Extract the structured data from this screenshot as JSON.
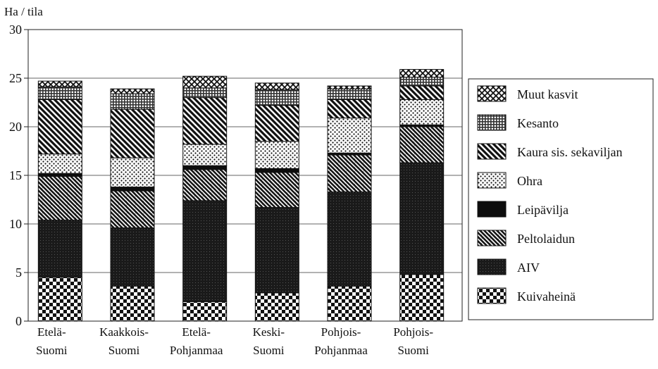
{
  "chart_data": {
    "type": "bar",
    "stacked": true,
    "title": "",
    "ylabel": "Ha / tila",
    "xlabel": "",
    "ylim": [
      0,
      30
    ],
    "yticks": [
      0,
      5,
      10,
      15,
      20,
      25,
      30
    ],
    "grid": true,
    "legend_position": "right",
    "categories": [
      [
        "Etelä-",
        "Suomi"
      ],
      [
        "Kaakkois-",
        "Suomi"
      ],
      [
        "Etelä-",
        "Pohjanmaa"
      ],
      [
        "Keski-",
        "Suomi"
      ],
      [
        "Pohjois-",
        "Pohjanmaa"
      ],
      [
        "Pohjois-",
        "Suomi"
      ]
    ],
    "series": [
      {
        "name": "Kuivaheinä",
        "pattern": "checker",
        "values": [
          4.5,
          3.6,
          2.0,
          2.9,
          3.6,
          4.8
        ]
      },
      {
        "name": "AIV",
        "pattern": "dense",
        "values": [
          5.9,
          6.0,
          10.4,
          8.8,
          9.7,
          11.5
        ]
      },
      {
        "name": "Peltolaidun",
        "pattern": "weave",
        "values": [
          4.5,
          3.8,
          3.2,
          3.6,
          3.8,
          3.7
        ]
      },
      {
        "name": "Leipävilja",
        "pattern": "solid",
        "values": [
          0.3,
          0.4,
          0.4,
          0.4,
          0.2,
          0.2
        ]
      },
      {
        "name": "Ohra",
        "pattern": "dots",
        "values": [
          2.0,
          3.0,
          2.2,
          2.8,
          3.6,
          2.6
        ]
      },
      {
        "name": "Kaura sis. sekaviljan",
        "pattern": "diagonal",
        "values": [
          5.6,
          5.0,
          4.8,
          3.7,
          1.9,
          1.4
        ]
      },
      {
        "name": "Kesanto",
        "pattern": "grid",
        "values": [
          1.3,
          1.6,
          1.0,
          1.6,
          1.1,
          0.9
        ]
      },
      {
        "name": "Muut kasvit",
        "pattern": "crosshatch",
        "values": [
          0.6,
          0.5,
          1.2,
          0.7,
          0.3,
          0.8
        ]
      }
    ]
  }
}
